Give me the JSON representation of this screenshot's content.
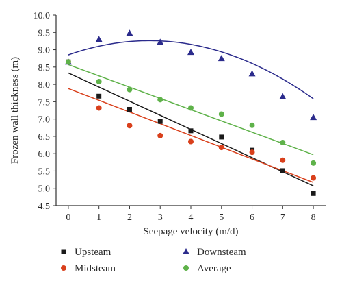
{
  "chart_data": {
    "type": "scatter",
    "xlabel": "Seepage velocity (m/d)",
    "ylabel": "Frozen wall thickness (m)",
    "xlim": [
      -0.4,
      8.4
    ],
    "ylim": [
      4.5,
      10.0
    ],
    "x_ticks": [
      0,
      1,
      2,
      3,
      4,
      5,
      6,
      7,
      8
    ],
    "y_ticks": [
      4.5,
      5.0,
      5.5,
      6.0,
      6.5,
      7.0,
      7.5,
      8.0,
      8.5,
      9.0,
      9.5,
      10.0
    ],
    "x_tick_labels": [
      "0",
      "1",
      "2",
      "3",
      "4",
      "5",
      "6",
      "7",
      "8"
    ],
    "y_tick_labels": [
      "4.5",
      "5.0",
      "5.5",
      "6.0",
      "6.5",
      "7.0",
      "7.5",
      "8.0",
      "8.5",
      "9.0",
      "9.5",
      "10.0"
    ],
    "grid": false,
    "legend_position": "bottom",
    "series": [
      {
        "name": "Upsteam",
        "marker": "square",
        "color": "#1a1a1a",
        "x": [
          0,
          1,
          2,
          3,
          4,
          5,
          6,
          7,
          8
        ],
        "y": [
          8.65,
          7.66,
          7.28,
          6.93,
          6.66,
          6.48,
          6.1,
          5.51,
          4.85
        ],
        "fit": {
          "type": "linear",
          "y_start": 8.33,
          "y_end": 5.07
        }
      },
      {
        "name": "Midsteam",
        "marker": "circle",
        "color": "#d9401c",
        "x": [
          0,
          1,
          2,
          3,
          4,
          5,
          6,
          7,
          8
        ],
        "y": [
          8.65,
          7.32,
          6.81,
          6.52,
          6.35,
          6.18,
          6.04,
          5.81,
          5.3
        ],
        "fit": {
          "type": "linear",
          "y_start": 7.88,
          "y_end": 5.17
        }
      },
      {
        "name": "Downsteam",
        "marker": "triangle",
        "color": "#2b2b8c",
        "x": [
          0,
          1,
          2,
          3,
          4,
          5,
          6,
          7,
          8
        ],
        "y": [
          8.65,
          9.3,
          9.48,
          9.22,
          8.93,
          8.75,
          8.31,
          7.65,
          7.05
        ],
        "fit": {
          "type": "quadratic",
          "a": -0.0585,
          "b": 0.31,
          "c": 8.85
        }
      },
      {
        "name": "Average",
        "marker": "circle",
        "color": "#5fb24a",
        "x": [
          0,
          1,
          2,
          3,
          4,
          5,
          6,
          7,
          8
        ],
        "y": [
          8.65,
          8.08,
          7.85,
          7.56,
          7.32,
          7.14,
          6.82,
          6.32,
          5.73
        ],
        "fit": {
          "type": "linear",
          "y_start": 8.57,
          "y_end": 5.97
        }
      }
    ]
  }
}
